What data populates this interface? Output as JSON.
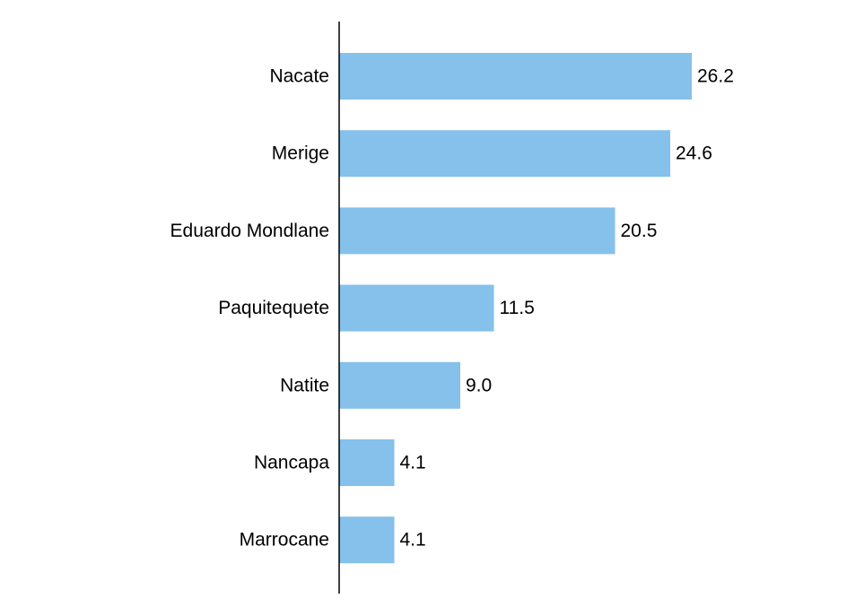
{
  "chart_data": {
    "type": "bar",
    "orientation": "horizontal",
    "categories": [
      "Nacate",
      "Merige",
      "Eduardo Mondlane",
      "Paquitequete",
      "Natite",
      "Nancapa",
      "Marrocane"
    ],
    "values": [
      26.2,
      24.6,
      20.5,
      11.5,
      9.0,
      4.1,
      4.1
    ],
    "value_labels": [
      "26.2",
      "24.6",
      "20.5",
      "11.5",
      "9.0",
      "4.1",
      "4.1"
    ],
    "title": "",
    "xlabel": "",
    "ylabel": "",
    "xlim": [
      0,
      26.2
    ],
    "grid": false,
    "legend": false,
    "bar_color": "#85c1ea",
    "axis_color": "#000000"
  }
}
